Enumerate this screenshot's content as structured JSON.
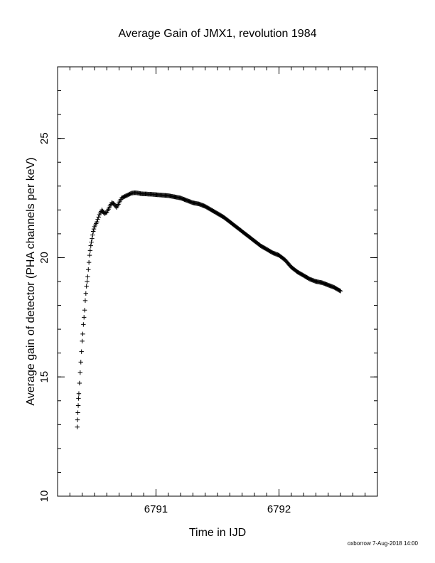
{
  "chart_data": {
    "type": "scatter",
    "title": "Average Gain of JMX1, revolution 1984",
    "xlabel": "Time in IJD",
    "ylabel": "Average gain of detector (PHA channels per keV)",
    "xlim": [
      6790.2,
      6792.8
    ],
    "ylim": [
      10,
      28
    ],
    "x_ticks": [
      6791,
      6792
    ],
    "x_tick_labels": [
      "6791",
      "6792"
    ],
    "x_minor_step": 0.1,
    "y_ticks": [
      10,
      15,
      20,
      25
    ],
    "y_tick_labels": [
      "10",
      "15",
      "20",
      "25"
    ],
    "y_minor_step": 1,
    "marker": "plus",
    "grid": false,
    "legend": "none",
    "points_x": [
      6790.36,
      6790.362,
      6790.365,
      6790.368,
      6790.37,
      6790.373,
      6790.4,
      6790.405,
      6790.41,
      6790.415,
      6790.42,
      6790.425,
      6790.43,
      6790.435,
      6790.44,
      6790.445,
      6790.45,
      6790.455,
      6790.46,
      6790.47,
      6790.48,
      6790.49,
      6790.5,
      6790.52,
      6790.54,
      6790.56,
      6790.58,
      6790.6,
      6790.62,
      6790.64,
      6790.66,
      6790.68,
      6790.7,
      6790.72,
      6790.74,
      6790.76,
      6790.78,
      6790.8,
      6790.82,
      6790.84,
      6790.86,
      6790.88,
      6790.9,
      6790.92,
      6790.94,
      6790.96,
      6790.98,
      6791.0,
      6791.05,
      6791.1,
      6791.15,
      6791.2,
      6791.25,
      6791.3,
      6791.35,
      6791.4,
      6791.45,
      6791.5,
      6791.55,
      6791.6,
      6791.65,
      6791.7,
      6791.75,
      6791.8,
      6791.85,
      6791.9,
      6791.95,
      6792.0,
      6792.05,
      6792.1,
      6792.15,
      6792.2,
      6792.25,
      6792.3,
      6792.35,
      6792.4,
      6792.45,
      6792.5
    ],
    "points_y": [
      12.9,
      13.2,
      13.5,
      13.8,
      14.1,
      14.3,
      16.5,
      16.8,
      17.2,
      17.5,
      17.8,
      18.2,
      18.5,
      18.8,
      19.0,
      19.2,
      19.5,
      19.8,
      20.1,
      20.5,
      20.8,
      21.1,
      21.3,
      21.5,
      21.8,
      22.0,
      21.85,
      21.9,
      22.1,
      22.3,
      22.25,
      22.1,
      22.3,
      22.5,
      22.55,
      22.6,
      22.65,
      22.7,
      22.72,
      22.72,
      22.7,
      22.68,
      22.67,
      22.67,
      22.66,
      22.66,
      22.65,
      22.64,
      22.62,
      22.6,
      22.55,
      22.5,
      22.4,
      22.3,
      22.25,
      22.15,
      22.0,
      21.85,
      21.7,
      21.5,
      21.3,
      21.1,
      20.9,
      20.7,
      20.5,
      20.35,
      20.2,
      20.1,
      19.9,
      19.6,
      19.4,
      19.25,
      19.1,
      19.0,
      18.95,
      18.85,
      18.75,
      18.6
    ]
  },
  "footer": {
    "stamp": "oxborrow  7-Aug-2018 14:00"
  }
}
